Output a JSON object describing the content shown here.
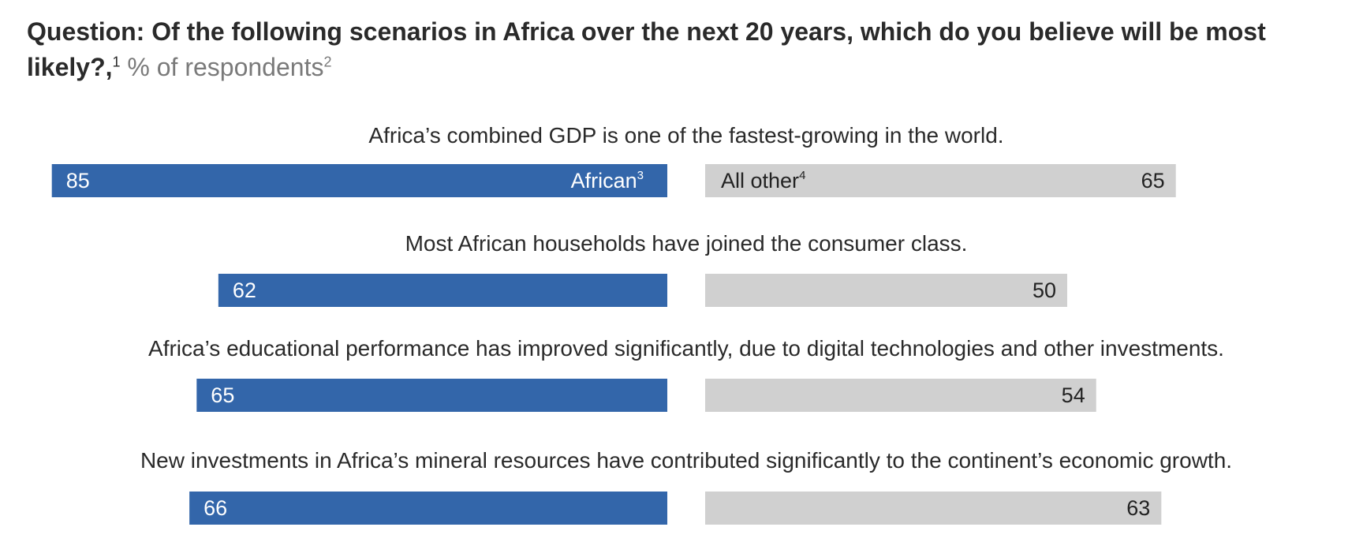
{
  "question_label": "Question: Of the following scenarios in Africa over the next 20 years, which do you believe will be most likely?,",
  "question_footnote": "1",
  "unit_label": "% of respondents",
  "unit_footnote": "2",
  "chart_data": {
    "type": "bar",
    "orientation": "horizontal-diverging",
    "categories": [
      "Africa’s combined GDP is one of the fastest-growing in the world.",
      "Most African households have joined the consumer class.",
      "Africa’s educational performance has improved significantly, due to digital technologies and other investments.",
      "New investments in Africa’s mineral resources have contributed significantly to the continent’s economic growth."
    ],
    "series": [
      {
        "name": "African",
        "footnote": "3",
        "values": [
          85,
          62,
          65,
          66
        ],
        "color": "#3366aa"
      },
      {
        "name": "All other",
        "footnote": "4",
        "values": [
          65,
          50,
          54,
          63
        ],
        "color": "#d0d0d0"
      }
    ],
    "xlim": [
      0,
      100
    ],
    "grid": false,
    "legend": "inline-in-first-bar"
  }
}
